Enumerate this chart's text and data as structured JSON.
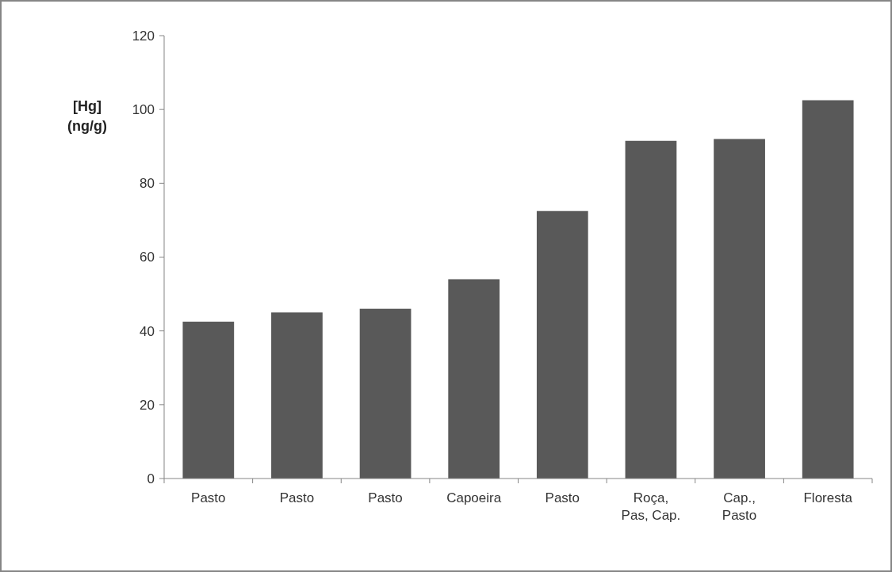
{
  "chart_data": {
    "type": "bar",
    "ylabel": "[Hg] (ng/g)",
    "categories": [
      "Pasto",
      "Pasto",
      "Pasto",
      "Capoeira",
      "Pasto",
      "Roça, Pas, Cap.",
      "Cap., Pasto",
      "Floresta"
    ],
    "values": [
      42.5,
      45,
      46,
      54,
      72.5,
      91.5,
      92,
      102.5
    ],
    "color": "#595959",
    "ylim": [
      0,
      120
    ],
    "yticks": [
      0,
      20,
      40,
      60,
      80,
      100,
      120
    ],
    "grid": false
  }
}
